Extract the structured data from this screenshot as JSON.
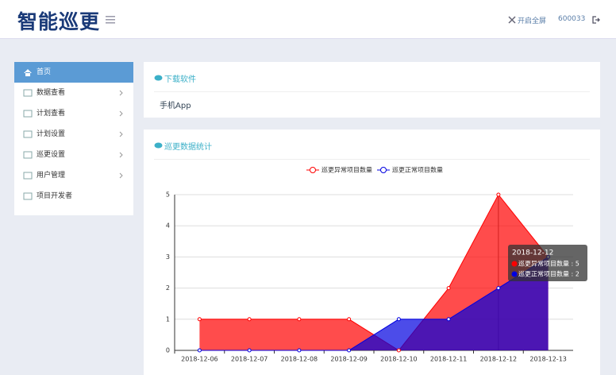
{
  "header": {
    "title": "智能巡更",
    "fullscreen": "开启全屏",
    "user": "600033"
  },
  "sidebar": {
    "items": [
      "首页",
      "数据查看",
      "计划查看",
      "计划设置",
      "巡更设置",
      "用户管理",
      "项目开发者"
    ]
  },
  "panels": [
    {
      "title": "下载软件",
      "body": "手机App"
    },
    {
      "title": "巡更数据统计"
    }
  ],
  "chart_data": {
    "type": "line",
    "area": true,
    "categories": [
      "2018-12-06",
      "2018-12-07",
      "2018-12-08",
      "2018-12-09",
      "2018-12-10",
      "2018-12-11",
      "2018-12-12",
      "2018-12-13"
    ],
    "series": [
      {
        "name": "巡更异常项目数量",
        "color": "#ff0000",
        "values": [
          1,
          1,
          1,
          1,
          0,
          2,
          5,
          3
        ]
      },
      {
        "name": "巡更正常项目数量",
        "color": "#0000e0",
        "values": [
          0,
          0,
          0,
          0,
          1,
          1,
          2,
          3
        ]
      }
    ],
    "ylim": [
      0,
      5
    ],
    "yticks": [
      0,
      1,
      2,
      3,
      4,
      5
    ],
    "grid": true
  },
  "tooltip": {
    "title": "2018-12-12",
    "lines": [
      "巡更异常项目数量 : 5",
      "巡更正常项目数量 : 2"
    ]
  }
}
